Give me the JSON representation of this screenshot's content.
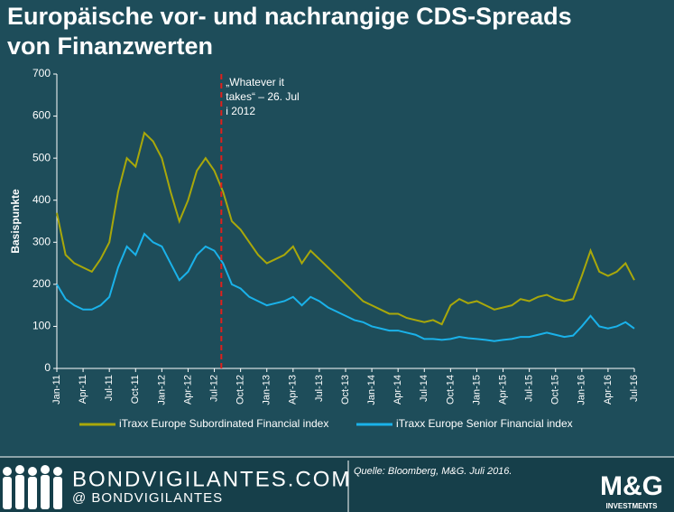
{
  "chart_data": {
    "type": "line",
    "title": [
      "Europäische vor- und nachrangige CDS-Spreads",
      "von Finanzwerten"
    ],
    "y_label": "Basispunkte",
    "annotation": "„Whatever it takes“ – 26. Juli 2012",
    "categories": [
      "Jan-11",
      null,
      null,
      "Apr-11",
      null,
      null,
      "Jul-11",
      null,
      null,
      "Oct-11",
      null,
      null,
      "Jan-12",
      null,
      null,
      "Apr-12",
      null,
      null,
      "Jul-12",
      null,
      null,
      "Oct-12",
      null,
      null,
      "Jan-13",
      null,
      null,
      "Apr-13",
      null,
      null,
      "Jul-13",
      null,
      null,
      "Oct-13",
      null,
      null,
      "Jan-14",
      null,
      null,
      "Apr-14",
      null,
      null,
      "Jul-14",
      null,
      null,
      "Oct-14",
      null,
      null,
      "Jan-15",
      null,
      null,
      "Apr-15",
      null,
      null,
      "Jul-15",
      null,
      null,
      "Oct-15",
      null,
      null,
      "Jan-16",
      null,
      null,
      "Apr-16",
      null,
      null,
      "Jul-16"
    ],
    "series": [
      {
        "name": "iTraxx Europe Subordinated Financial index",
        "color": "#a9a80a",
        "values": [
          370,
          270,
          250,
          240,
          230,
          260,
          300,
          420,
          500,
          480,
          560,
          540,
          500,
          420,
          350,
          400,
          470,
          500,
          470,
          420,
          350,
          330,
          300,
          270,
          250,
          260,
          270,
          290,
          250,
          280,
          260,
          240,
          220,
          200,
          180,
          160,
          150,
          140,
          130,
          130,
          120,
          115,
          110,
          115,
          105,
          150,
          165,
          155,
          160,
          150,
          140,
          145,
          150,
          165,
          160,
          170,
          175,
          165,
          160,
          165,
          220,
          280,
          230,
          220,
          230,
          250,
          210
        ]
      },
      {
        "name": "iTraxx Europe Senior Financial index",
        "color": "#1ab2ea",
        "values": [
          200,
          165,
          150,
          140,
          140,
          150,
          170,
          240,
          290,
          270,
          320,
          300,
          290,
          250,
          210,
          230,
          270,
          290,
          280,
          250,
          200,
          190,
          170,
          160,
          150,
          155,
          160,
          170,
          150,
          170,
          160,
          145,
          135,
          125,
          115,
          110,
          100,
          95,
          90,
          90,
          85,
          80,
          70,
          70,
          68,
          70,
          75,
          72,
          70,
          68,
          65,
          68,
          70,
          75,
          75,
          80,
          85,
          80,
          75,
          78,
          100,
          125,
          100,
          95,
          100,
          110,
          95
        ]
      }
    ],
    "ylim": [
      0,
      700
    ],
    "yticks": [
      0,
      100,
      200,
      300,
      400,
      500,
      600,
      700
    ],
    "grid": false
  },
  "footer": {
    "site": "BONDVIGILANTES.COM",
    "handle": "@ BONDVIGILANTES",
    "source": "Quelle: Bloomberg, M&G. Juli 2016.",
    "logo": "M&G",
    "logo_sub": "INVESTMENTS"
  }
}
